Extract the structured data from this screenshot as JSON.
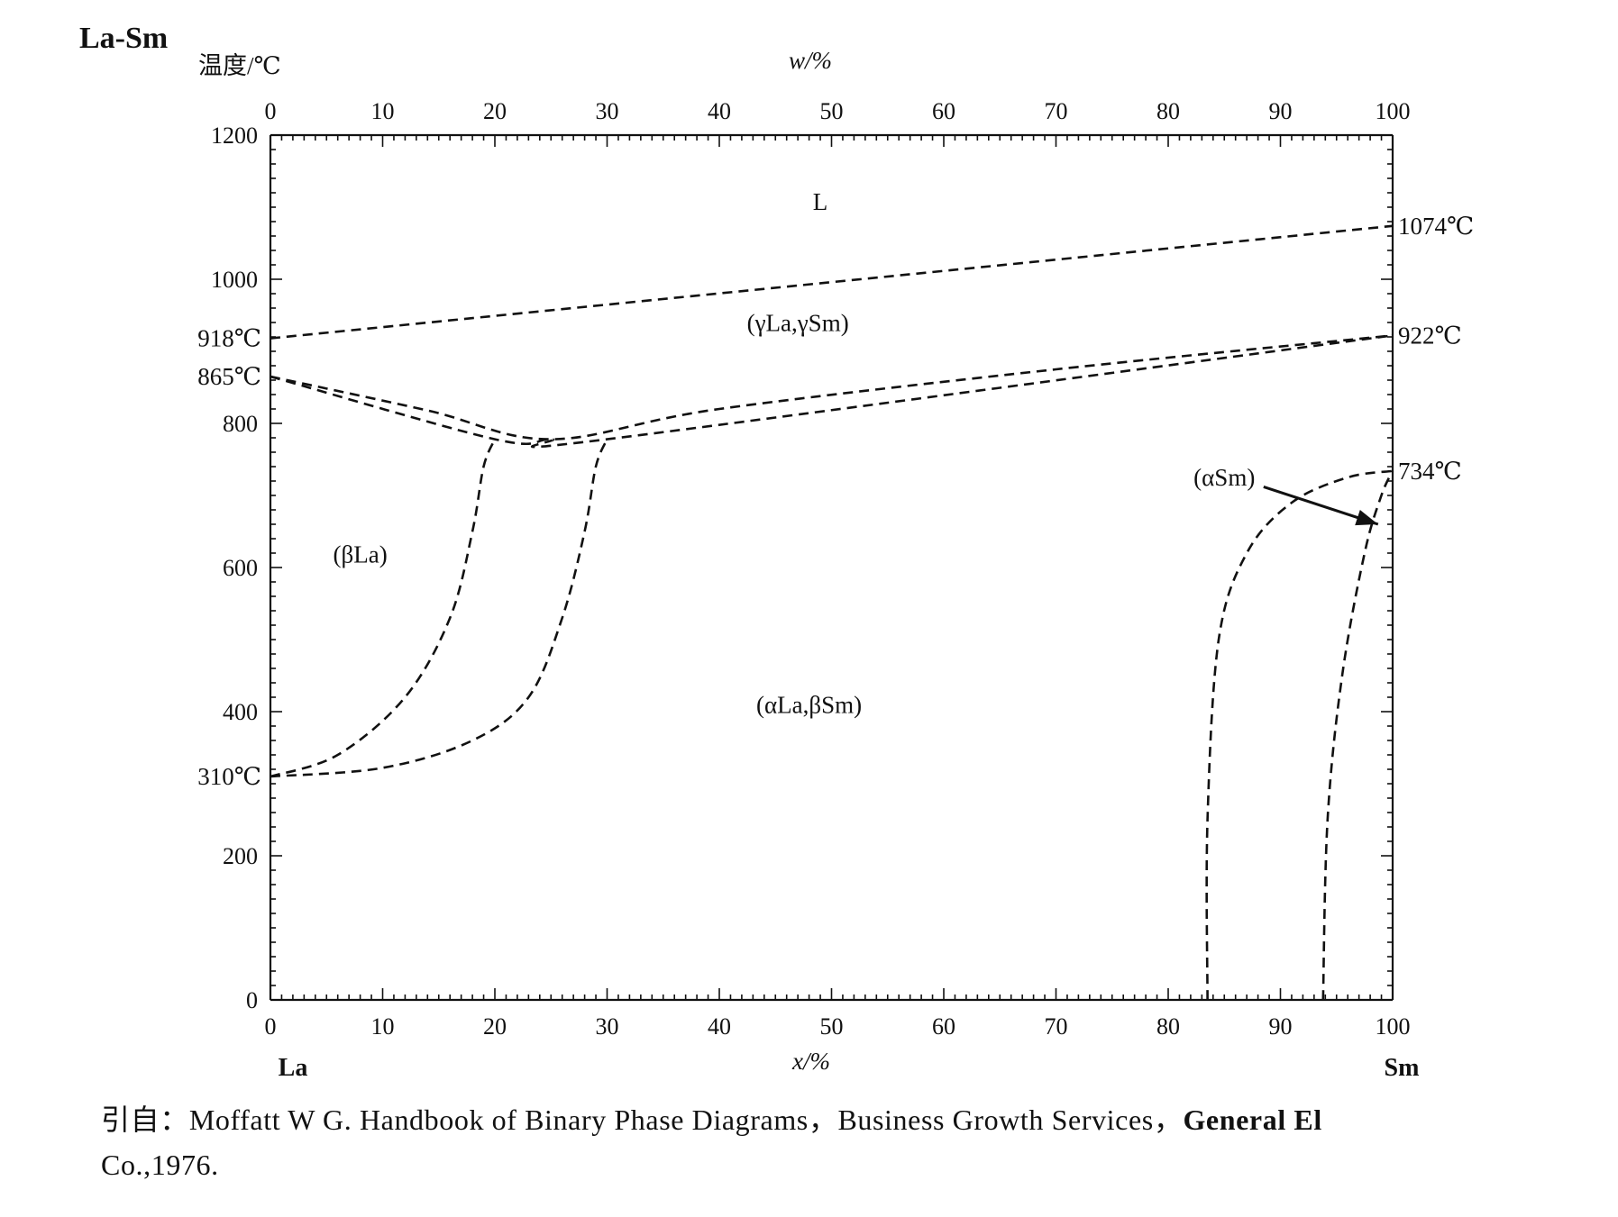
{
  "title": "La-Sm",
  "caption": {
    "prefix": "引自：",
    "text": "Moffatt W G. Handbook of Binary Phase Diagrams，Business Growth Services，",
    "bold_tail": "General El",
    "line2": "Co.,1976."
  },
  "chart_data": {
    "type": "line",
    "title": "La-Sm",
    "xlabel": "x/%",
    "x2label": "w/%",
    "ylabel": "温度/℃",
    "xlim": [
      0,
      100
    ],
    "ylim": [
      0,
      1200
    ],
    "x_ticks": [
      0,
      10,
      20,
      30,
      40,
      50,
      60,
      70,
      80,
      90,
      100
    ],
    "x2_ticks": [
      0,
      10,
      20,
      30,
      40,
      50,
      60,
      70,
      80,
      90,
      100
    ],
    "y_ticks": [
      0,
      200,
      400,
      600,
      800,
      1000,
      1200
    ],
    "left_element": "La",
    "right_element": "Sm",
    "temperature_labels": {
      "left": [
        {
          "label": "918℃",
          "value": 918
        },
        {
          "label": "865℃",
          "value": 865
        },
        {
          "label": "310℃",
          "value": 310
        }
      ],
      "right": [
        {
          "label": "1074℃",
          "value": 1074
        },
        {
          "label": "922℃",
          "value": 922
        },
        {
          "label": "734℃",
          "value": 734
        }
      ]
    },
    "phase_labels": [
      {
        "label": "L",
        "x": 49,
        "y": 1096
      },
      {
        "label": "(γLa,γSm)",
        "x": 47,
        "y": 928
      },
      {
        "label": "(βLa)",
        "x": 8,
        "y": 607
      },
      {
        "label": "(αLa,βSm)",
        "x": 48,
        "y": 398
      },
      {
        "label": "(αSm)",
        "x": 85,
        "y": 714
      }
    ],
    "arrow": {
      "from": [
        88.5,
        712
      ],
      "to": [
        98.7,
        660
      ]
    },
    "series": [
      {
        "style": "dashed",
        "points": [
          [
            0,
            918
          ],
          [
            100,
            1074
          ]
        ]
      },
      {
        "style": "dashed",
        "points": [
          [
            0,
            865
          ],
          [
            20,
            778
          ],
          [
            25,
            778
          ],
          [
            30,
            778
          ],
          [
            100,
            922
          ]
        ]
      },
      {
        "style": "dashed",
        "points": [
          [
            0,
            865
          ],
          [
            14,
            818
          ],
          [
            25,
            778
          ],
          [
            40,
            820
          ],
          [
            70,
            875
          ],
          [
            100,
            922
          ]
        ]
      },
      {
        "style": "dashed",
        "points": [
          [
            0,
            310
          ],
          [
            6,
            340
          ],
          [
            12,
            420
          ],
          [
            16,
            530
          ],
          [
            18,
            650
          ],
          [
            19,
            740
          ],
          [
            20,
            778
          ]
        ]
      },
      {
        "style": "dashed",
        "points": [
          [
            0,
            310
          ],
          [
            10,
            322
          ],
          [
            18,
            360
          ],
          [
            23,
            420
          ],
          [
            26,
            530
          ],
          [
            28,
            650
          ],
          [
            29,
            740
          ],
          [
            30,
            778
          ]
        ]
      },
      {
        "style": "dashed",
        "points": [
          [
            83.5,
            0
          ],
          [
            83.5,
            250
          ],
          [
            84.5,
            500
          ],
          [
            87,
            620
          ],
          [
            91,
            690
          ],
          [
            96,
            725
          ],
          [
            100,
            734
          ]
        ]
      },
      {
        "style": "dashed",
        "points": [
          [
            93.8,
            0
          ],
          [
            94.2,
            250
          ],
          [
            95.5,
            450
          ],
          [
            97.5,
            620
          ],
          [
            99,
            700
          ],
          [
            100,
            734
          ]
        ]
      }
    ]
  }
}
